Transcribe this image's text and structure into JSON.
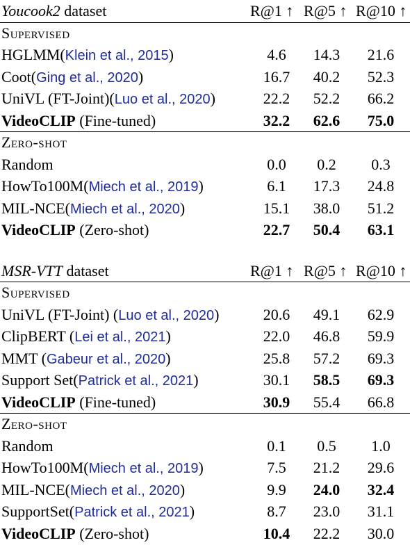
{
  "tables": [
    {
      "dataset_name": "Youcook2",
      "dataset_suffix": " dataset",
      "metrics": [
        "R@1 ↑",
        "R@5 ↑",
        "R@10 ↑"
      ],
      "sections": [
        {
          "title": "Supervised",
          "rows": [
            {
              "pre": "HGLMM(",
              "cite": "Klein et al., 2015",
              "post": ")",
              "bold_name": false,
              "values": [
                "4.6",
                "14.3",
                "21.6"
              ],
              "bold": [
                false,
                false,
                false
              ]
            },
            {
              "pre": "Coot(",
              "cite": "Ging et al., 2020",
              "post": ")",
              "bold_name": false,
              "values": [
                "16.7",
                "40.2",
                "52.3"
              ],
              "bold": [
                false,
                false,
                false
              ]
            },
            {
              "pre": "UniVL (FT-Joint)(",
              "cite": "Luo et al., 2020",
              "post": ")",
              "bold_name": false,
              "values": [
                "22.2",
                "52.2",
                "66.2"
              ],
              "bold": [
                false,
                false,
                false
              ]
            },
            {
              "pre": "VideoCLIP",
              "cite": "",
              "post": " (Fine-tuned)",
              "bold_name": true,
              "values": [
                "32.2",
                "62.6",
                "75.0"
              ],
              "bold": [
                true,
                true,
                true
              ]
            }
          ]
        },
        {
          "title": "Zero-shot",
          "rows": [
            {
              "pre": "Random",
              "cite": "",
              "post": "",
              "bold_name": false,
              "values": [
                "0.0",
                "0.2",
                "0.3"
              ],
              "bold": [
                false,
                false,
                false
              ]
            },
            {
              "pre": "HowTo100M(",
              "cite": "Miech et al., 2019",
              "post": ")",
              "bold_name": false,
              "values": [
                "6.1",
                "17.3",
                "24.8"
              ],
              "bold": [
                false,
                false,
                false
              ]
            },
            {
              "pre": "MIL-NCE(",
              "cite": "Miech et al., 2020",
              "post": ")",
              "bold_name": false,
              "values": [
                "15.1",
                "38.0",
                "51.2"
              ],
              "bold": [
                false,
                false,
                false
              ]
            },
            {
              "pre": "VideoCLIP",
              "cite": "",
              "post": " (Zero-shot)",
              "bold_name": true,
              "values": [
                "22.7",
                "50.4",
                "63.1"
              ],
              "bold": [
                true,
                true,
                true
              ]
            }
          ]
        }
      ]
    },
    {
      "dataset_name": "MSR-VTT",
      "dataset_suffix": " dataset",
      "metrics": [
        "R@1 ↑",
        "R@5 ↑",
        "R@10 ↑"
      ],
      "sections": [
        {
          "title": "Supervised",
          "rows": [
            {
              "pre": "UniVL (FT-Joint) (",
              "cite": "Luo et al., 2020",
              "post": ")",
              "bold_name": false,
              "values": [
                "20.6",
                "49.1",
                "62.9"
              ],
              "bold": [
                false,
                false,
                false
              ]
            },
            {
              "pre": "ClipBERT (",
              "cite": "Lei et al., 2021",
              "post": ")",
              "bold_name": false,
              "values": [
                "22.0",
                "46.8",
                "59.9"
              ],
              "bold": [
                false,
                false,
                false
              ]
            },
            {
              "pre": "MMT (",
              "cite": "Gabeur et al., 2020",
              "post": ")",
              "bold_name": false,
              "values": [
                "25.8",
                "57.2",
                "69.3"
              ],
              "bold": [
                false,
                false,
                false
              ]
            },
            {
              "pre": "Support Set(",
              "cite": "Patrick et al., 2021",
              "post": ")",
              "bold_name": false,
              "values": [
                "30.1",
                "58.5",
                "69.3"
              ],
              "bold": [
                false,
                true,
                true
              ]
            },
            {
              "pre": "VideoCLIP",
              "cite": "",
              "post": " (Fine-tuned)",
              "bold_name": true,
              "values": [
                "30.9",
                "55.4",
                "66.8"
              ],
              "bold": [
                true,
                false,
                false
              ]
            }
          ]
        },
        {
          "title": "Zero-shot",
          "rows": [
            {
              "pre": "Random",
              "cite": "",
              "post": "",
              "bold_name": false,
              "values": [
                "0.1",
                "0.5",
                "1.0"
              ],
              "bold": [
                false,
                false,
                false
              ]
            },
            {
              "pre": "HowTo100M(",
              "cite": "Miech et al., 2019",
              "post": ")",
              "bold_name": false,
              "values": [
                "7.5",
                "21.2",
                "29.6"
              ],
              "bold": [
                false,
                false,
                false
              ]
            },
            {
              "pre": "MIL-NCE(",
              "cite": "Miech et al., 2020",
              "post": ")",
              "bold_name": false,
              "values": [
                "9.9",
                "24.0",
                "32.4"
              ],
              "bold": [
                false,
                true,
                true
              ]
            },
            {
              "pre": "SupportSet(",
              "cite": "Patrick et al., 2021",
              "post": ")",
              "bold_name": false,
              "values": [
                "8.7",
                "23.0",
                "31.1"
              ],
              "bold": [
                false,
                false,
                false
              ]
            },
            {
              "pre": "VideoCLIP",
              "cite": "",
              "post": " (Zero-shot)",
              "bold_name": true,
              "values": [
                "10.4",
                "22.2",
                "30.0"
              ],
              "bold": [
                true,
                false,
                false
              ]
            }
          ]
        }
      ]
    }
  ]
}
